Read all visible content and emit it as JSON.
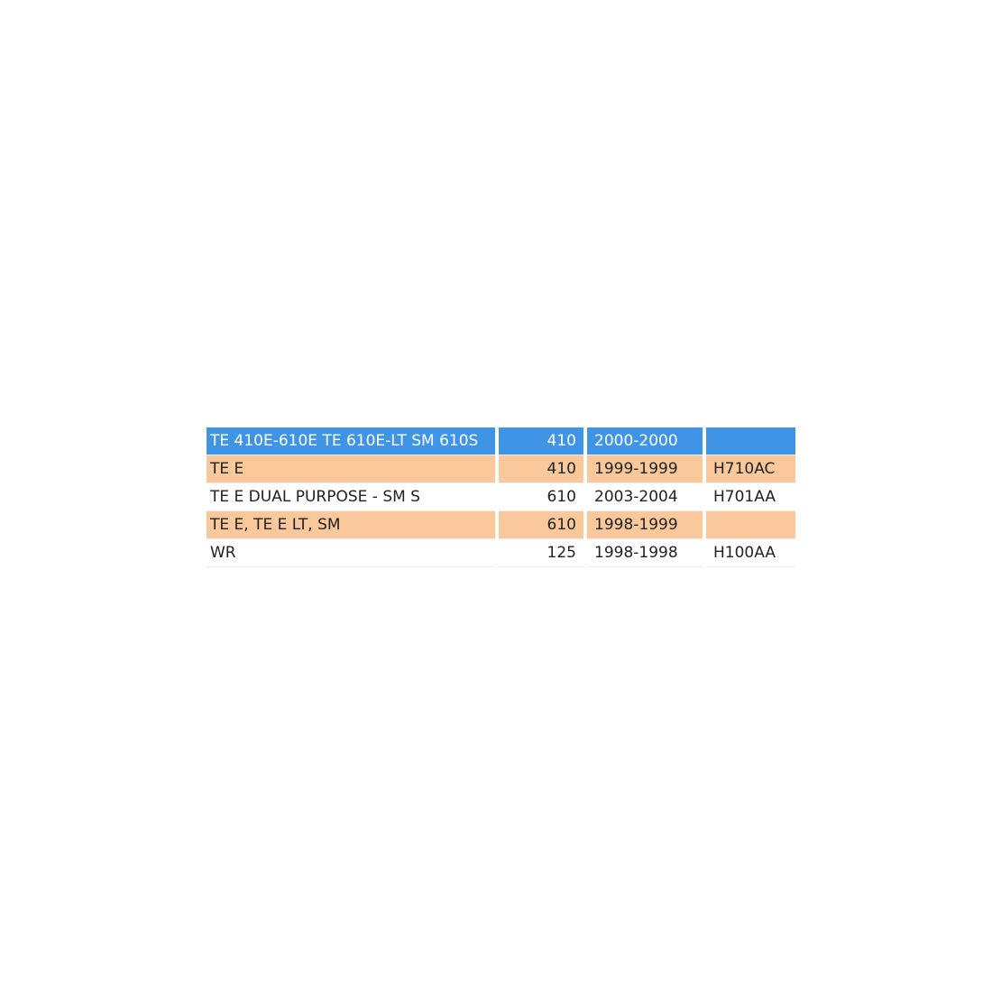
{
  "colors": {
    "selected": "#3f94e6",
    "alternate": "#fbc89b"
  },
  "rows": [
    {
      "model": "TE 410E-610E TE 610E-LT SM 610S",
      "cc": "410",
      "years": "2000-2000",
      "code": "",
      "state": "selected"
    },
    {
      "model": "TE E",
      "cc": "410",
      "years": "1999-1999",
      "code": "H710AC",
      "state": "alternate"
    },
    {
      "model": "TE E DUAL PURPOSE - SM S",
      "cc": "610",
      "years": "2003-2004",
      "code": "H701AA",
      "state": "normal"
    },
    {
      "model": "TE E, TE E LT, SM",
      "cc": "610",
      "years": "1998-1999",
      "code": "",
      "state": "alternate"
    },
    {
      "model": "WR",
      "cc": "125",
      "years": "1998-1998",
      "code": "H100AA",
      "state": "normal"
    }
  ]
}
